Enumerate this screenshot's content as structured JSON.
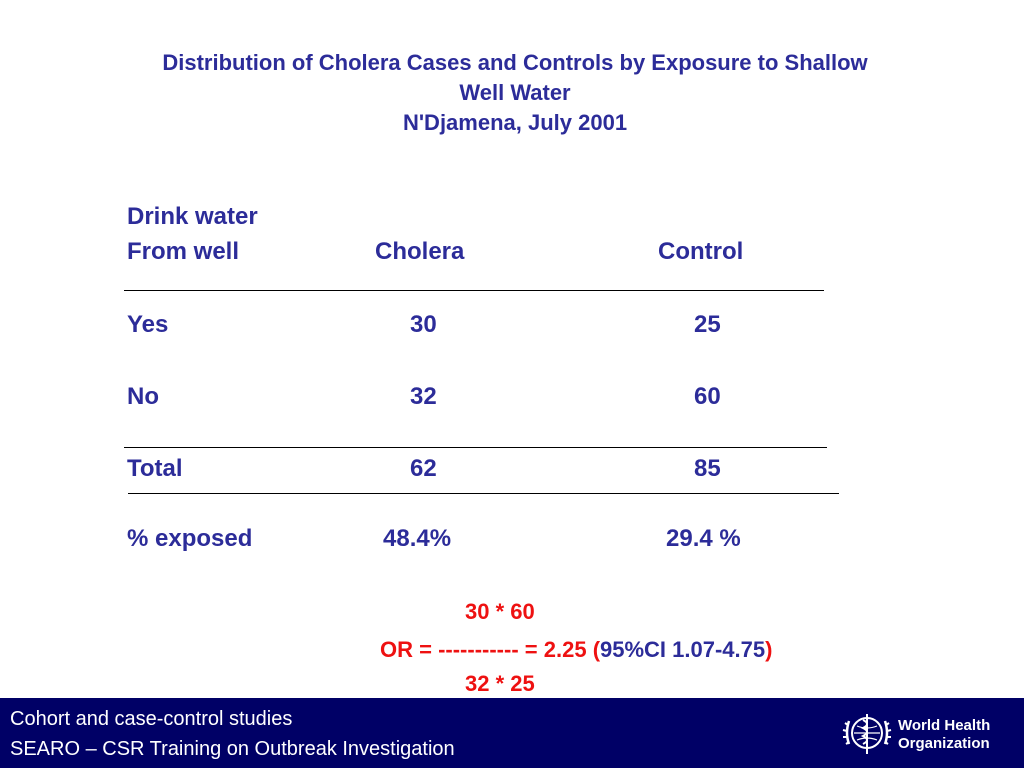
{
  "title": {
    "line1": "Distribution of Cholera Cases and Controls by Exposure to Shallow",
    "line2": "Well Water",
    "line3": "N'Djamena, July 2001"
  },
  "table": {
    "header_row1": "Drink water",
    "header_row2_col1": "From well",
    "header_col2": "Cholera",
    "header_col3": "Control",
    "rows": [
      {
        "label": "Yes",
        "cholera": "30",
        "control": "25"
      },
      {
        "label": "No",
        "cholera": "32",
        "control": "60"
      },
      {
        "label": "Total",
        "cholera": "62",
        "control": "85"
      },
      {
        "label": "% exposed",
        "cholera": "48.4%",
        "control": "29.4 %"
      }
    ]
  },
  "odds_ratio": {
    "numerator": "30 * 60",
    "or_label": "OR = -----------  =  2.25",
    "ci_open": "(",
    "ci_text": "95%CI 1.07-4.75",
    "ci_close": ")",
    "denominator": "32 * 25"
  },
  "footer": {
    "line1": "Cohort and case-control studies",
    "line2": "SEARO – CSR Training on Outbreak Investigation",
    "logo_line1": "World Health",
    "logo_line2": "Organization"
  },
  "colors": {
    "text_blue": "#2c2c99",
    "red": "#ee1111",
    "footer_bg": "#000066"
  }
}
